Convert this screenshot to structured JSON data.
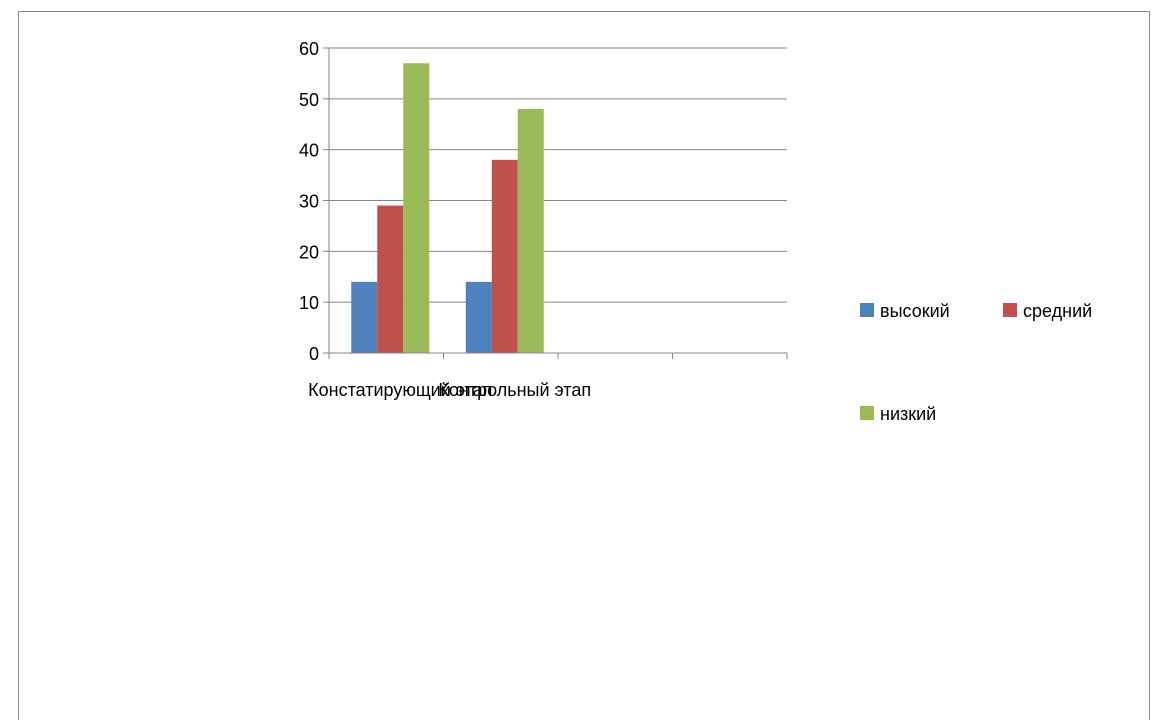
{
  "chart_data": {
    "type": "bar",
    "categories": [
      "Констатирующий этап",
      "Контрольный этап",
      "",
      ""
    ],
    "series": [
      {
        "name": "высокий",
        "values": [
          14,
          14,
          null,
          null
        ],
        "color": "#4f81bd"
      },
      {
        "name": "средний",
        "values": [
          29,
          38,
          null,
          null
        ],
        "color": "#c0504d"
      },
      {
        "name": "низкий",
        "values": [
          57,
          48,
          null,
          null
        ],
        "color": "#9bbb59"
      }
    ],
    "y_ticks": [
      "0",
      "10",
      "20",
      "30",
      "40",
      "50",
      "60"
    ],
    "ylim": [
      0,
      60
    ],
    "grid": true,
    "legend_position": "right",
    "title": "",
    "xlabel": "",
    "ylabel": ""
  }
}
